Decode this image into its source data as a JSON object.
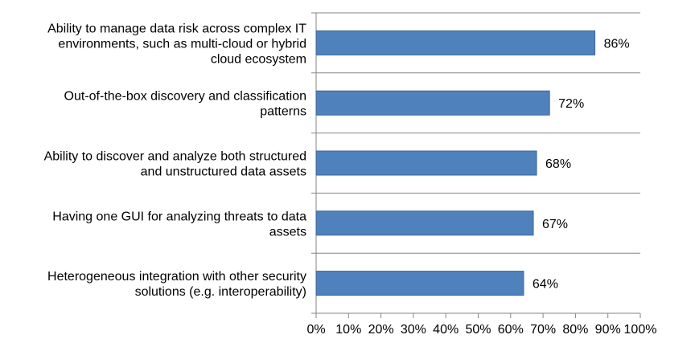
{
  "chart_data": {
    "type": "bar",
    "orientation": "horizontal",
    "title": "",
    "xlabel": "",
    "ylabel": "",
    "categories": [
      [
        "Ability to manage data risk across complex IT",
        "environments, such as multi-cloud or hybrid",
        "cloud ecosystem"
      ],
      [
        "Out-of-the-box discovery and classification",
        "patterns"
      ],
      [
        "Ability to discover and analyze both structured",
        "and unstructured data assets"
      ],
      [
        "Having one GUI for analyzing threats to data",
        "assets"
      ],
      [
        "Heterogeneous integration with other security",
        "solutions (e.g. interoperability)"
      ]
    ],
    "values": [
      86,
      72,
      68,
      67,
      64
    ],
    "data_labels": [
      "86%",
      "72%",
      "68%",
      "67%",
      "64%"
    ],
    "xlim": [
      0,
      100
    ],
    "ticks": [
      0,
      10,
      20,
      30,
      40,
      50,
      60,
      70,
      80,
      90,
      100
    ],
    "tick_labels": [
      "0%",
      "10%",
      "20%",
      "30%",
      "40%",
      "50%",
      "60%",
      "70%",
      "80%",
      "90%",
      "100%"
    ],
    "bar_color": "#4F81BD",
    "bar_edge_color": "#3A6496",
    "axis_color": "#868686",
    "grid": false,
    "legend": "none"
  }
}
